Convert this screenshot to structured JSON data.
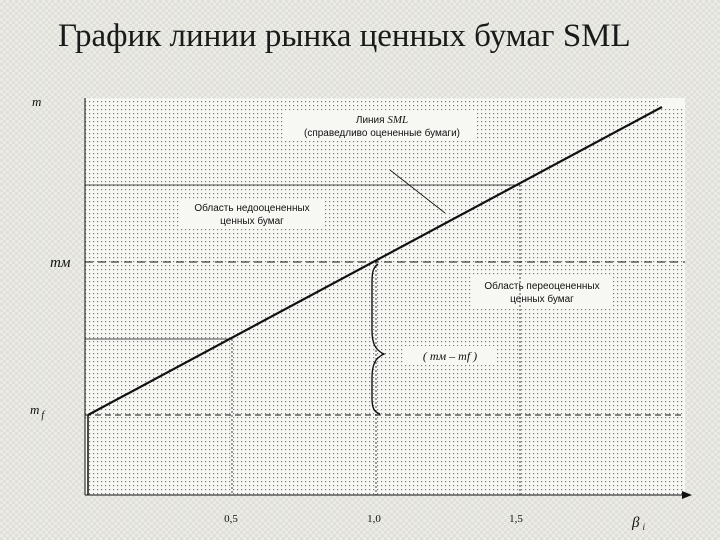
{
  "title": "График линии рынка ценных бумаг SML",
  "axes": {
    "y_label": "m",
    "x_label": "β",
    "x_label_sub": "i"
  },
  "levels": {
    "market": "mм",
    "riskfree_main": "m",
    "riskfree_sub": "f"
  },
  "x_ticks": [
    "0,5",
    "1,0",
    "1,5"
  ],
  "annotations": {
    "sml_line_1_prefix": "Линия ",
    "sml_line_1_term": "SML",
    "sml_line_2": "(справедливо оцененные бумаги)",
    "undervalued_1": "Область недооцененных",
    "undervalued_2": "ценных бумаг",
    "overvalued_1": "Область переоцененных",
    "overvalued_2": "ценных бумаг",
    "premium_formula": "( mм – mf )"
  },
  "colors": {
    "ink": "#111111",
    "plot_background": "#f7f7f4",
    "dot_pattern": "#777777"
  }
}
